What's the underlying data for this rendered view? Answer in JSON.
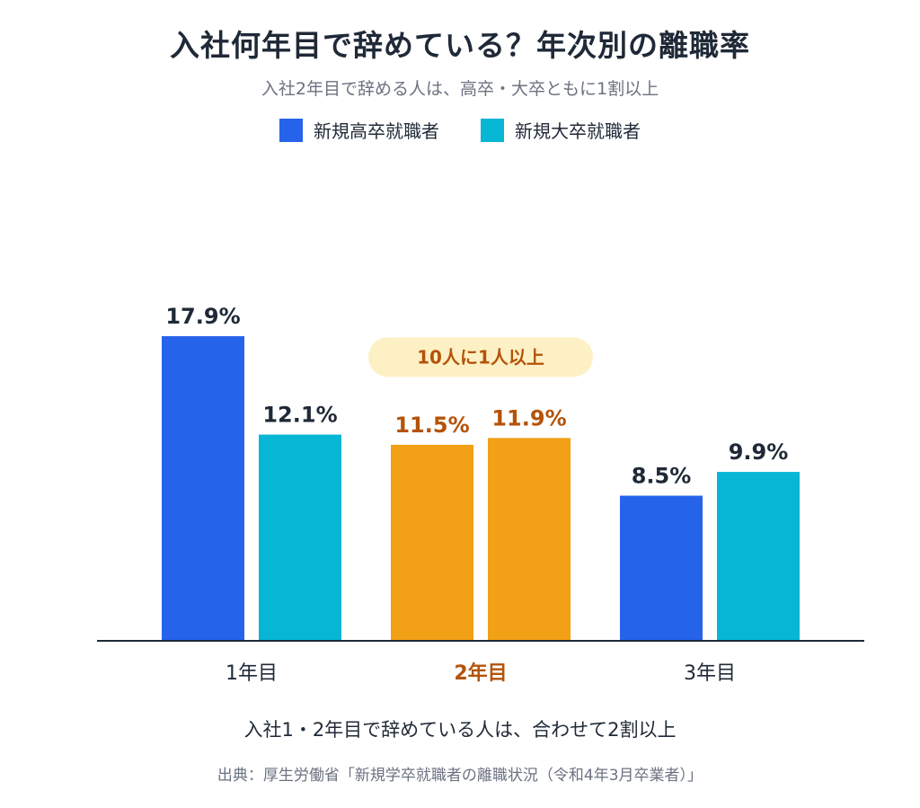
{
  "title": "入社何年目で辞めている？年次別の離職率",
  "subtitle": "入社2年目で辞める人は、高卒・大卒ともに1割以上",
  "colors": {
    "high_school": "#2563eb",
    "university": "#06b6d4",
    "highlight": "#f2a016",
    "highlight_text": "#b45309",
    "highlight_pill": "#fdf0c4",
    "axis": "#1f2937"
  },
  "chart_data": {
    "type": "bar",
    "categories": [
      "1年目",
      "2年目",
      "3年目"
    ],
    "series": [
      {
        "name": "新規高卒就職者",
        "values": [
          17.9,
          11.5,
          8.5
        ],
        "labels": [
          "17.9%",
          "11.5%",
          "8.5%"
        ]
      },
      {
        "name": "新規大卒就職者",
        "values": [
          12.1,
          11.9,
          9.9
        ],
        "labels": [
          "12.1%",
          "11.9%",
          "9.9%"
        ]
      }
    ],
    "highlight_category": "2年目",
    "annotation": "10人に1人以上",
    "ylim": [
      0,
      25
    ]
  },
  "caption": "入社1・2年目で辞めている人は、合わせて2割以上",
  "source": "出典：厚生労働省「新規学卒就職者の離職状況（令和4年3月卒業者）」"
}
